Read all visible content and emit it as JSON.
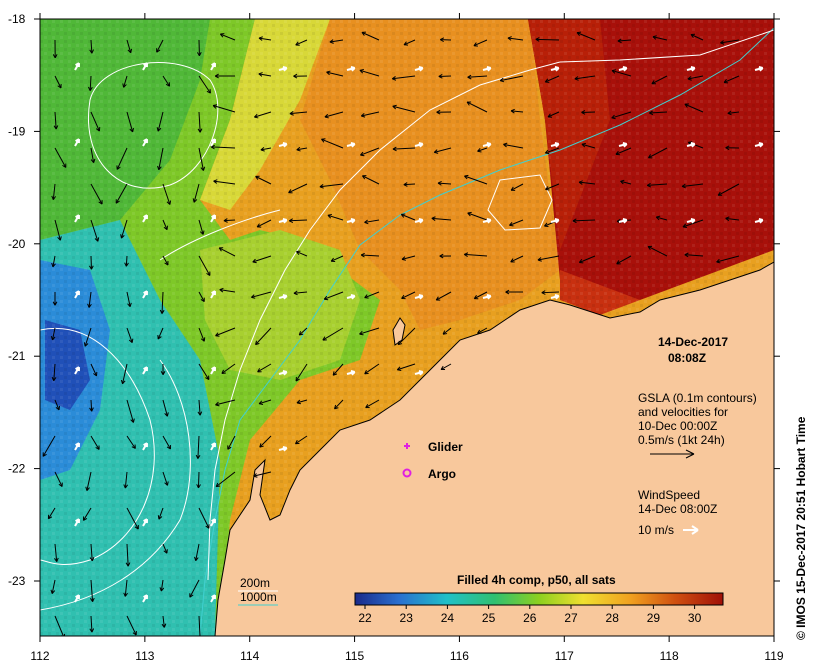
{
  "map": {
    "date": "14-Dec-2017",
    "time": "08:08Z",
    "x_ticks": [
      "112",
      "113",
      "114",
      "115",
      "116",
      "117",
      "118",
      "119"
    ],
    "y_ticks": [
      "-18",
      "-19",
      "-20",
      "-21",
      "-22",
      "-23"
    ],
    "gsla_lines": [
      "GSLA (0.1m contours)",
      "and velocities for",
      "10-Dec 00:00Z",
      "0.5m/s (1kt 24h)"
    ],
    "glider_label": "Glider",
    "argo_label": "Argo",
    "wind_lines": [
      "WindSpeed",
      "14-Dec 08:00Z"
    ],
    "wind_scale": "10 m/s",
    "depth_200": "200m",
    "depth_1000": "1000m",
    "colorbar_title": "Filled 4h comp, p50, all sats",
    "colorbar_ticks": [
      "22",
      "23",
      "24",
      "25",
      "26",
      "27",
      "28",
      "29",
      "30"
    ],
    "credit": "© IMOS 15-Dec-2017 20:51 Hobart Time",
    "colors": {
      "land": "#f8c89c",
      "contour_200": "#ffffff",
      "contour_1000": "#40d0d0",
      "glider": "#e020e0",
      "argo": "#e020e0",
      "velocity_arrow": "#000000",
      "wind_arrow": "#ffffff"
    }
  }
}
